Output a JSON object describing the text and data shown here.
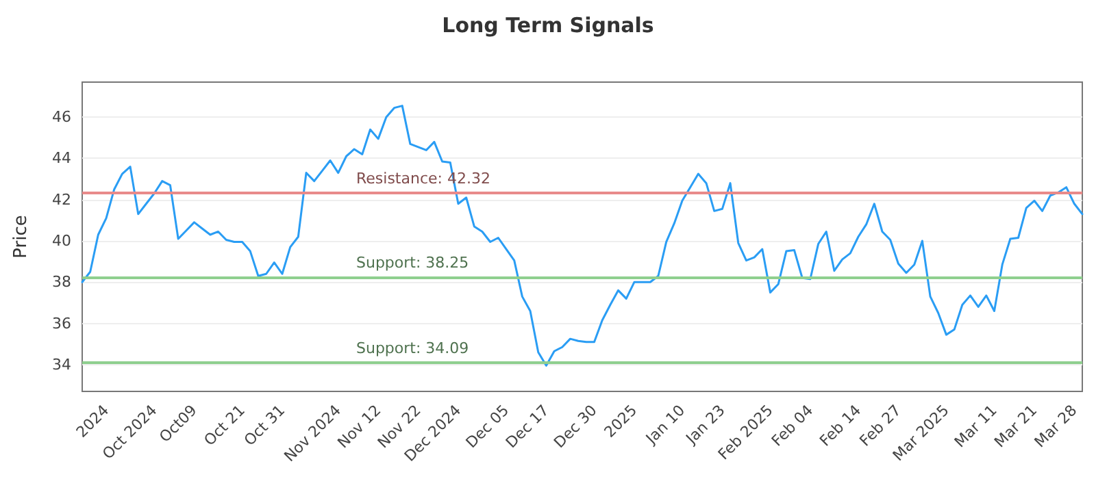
{
  "chart_data": {
    "type": "line",
    "title": "Long Term Signals",
    "ylabel": "Price",
    "categories": [
      null,
      null,
      null,
      "2024",
      null,
      null,
      null,
      null,
      null,
      "Oct 2024",
      null,
      null,
      null,
      null,
      "Oct09",
      null,
      null,
      null,
      null,
      null,
      "Oct 21",
      null,
      null,
      null,
      null,
      "Oct 31",
      null,
      null,
      null,
      null,
      null,
      null,
      "Nov 2024",
      null,
      null,
      null,
      null,
      "Nov 12",
      null,
      null,
      null,
      null,
      "Nov 22",
      null,
      null,
      null,
      null,
      "Dec 2024",
      null,
      null,
      null,
      null,
      null,
      "Dec 05",
      null,
      null,
      null,
      null,
      "Dec 17",
      null,
      null,
      null,
      null,
      null,
      "Dec 30",
      null,
      null,
      null,
      null,
      "2025",
      null,
      null,
      null,
      null,
      null,
      "Jan 10",
      null,
      null,
      null,
      null,
      "Jan 23",
      null,
      null,
      null,
      null,
      null,
      "Feb 2025",
      null,
      null,
      null,
      null,
      "Feb 04",
      null,
      null,
      null,
      null,
      null,
      "Feb 14",
      null,
      null,
      null,
      null,
      "Feb 27",
      null,
      null,
      null,
      null,
      null,
      "Mar 2025",
      null,
      null,
      null,
      null,
      null,
      "Mar 11",
      null,
      null,
      null,
      null,
      "Mar 21",
      null,
      null,
      null,
      null,
      "Mar 28",
      null
    ],
    "series": [
      {
        "color": "#2a9df4",
        "values": [
          38.0,
          38.5,
          40.3,
          41.1,
          42.5,
          43.25,
          43.6,
          41.3,
          41.8,
          42.3,
          42.9,
          42.7,
          40.1,
          40.5,
          40.9,
          40.6,
          40.3,
          40.45,
          40.05,
          39.95,
          39.95,
          39.5,
          38.3,
          38.4,
          38.95,
          38.4,
          39.7,
          40.2,
          43.3,
          42.9,
          43.4,
          43.9,
          43.3,
          44.1,
          44.45,
          44.2,
          45.4,
          44.95,
          46.0,
          46.45,
          46.55,
          44.7,
          44.55,
          44.4,
          44.8,
          43.85,
          43.8,
          41.8,
          42.1,
          40.7,
          40.45,
          39.95,
          40.15,
          39.6,
          39.05,
          37.3,
          36.6,
          34.6,
          33.95,
          34.65,
          34.85,
          35.25,
          35.15,
          35.1,
          35.1,
          36.15,
          36.9,
          37.6,
          37.2,
          38.0,
          38.0,
          38.0,
          38.3,
          39.95,
          40.85,
          41.95,
          42.6,
          43.25,
          42.8,
          41.45,
          41.55,
          42.8,
          39.9,
          39.05,
          39.2,
          39.6,
          37.5,
          37.9,
          39.5,
          39.55,
          38.2,
          38.15,
          39.85,
          40.45,
          38.55,
          39.1,
          39.4,
          40.2,
          40.8,
          41.8,
          40.45,
          40.05,
          38.9,
          38.45,
          38.85,
          40.0,
          37.3,
          36.5,
          35.45,
          35.7,
          36.9,
          37.35,
          36.8,
          37.35,
          36.6,
          38.85,
          40.1,
          40.15,
          41.6,
          41.95,
          41.45,
          42.2,
          42.35,
          42.6,
          41.8,
          41.3
        ]
      }
    ],
    "ylim": [
      32.7,
      47.7
    ],
    "yticks": [
      34,
      36,
      38,
      40,
      42,
      44,
      46
    ],
    "grid": "y",
    "marker": "none",
    "ref_lines": [
      {
        "axis": "y",
        "value": 42.32,
        "label": "Resistance: 42.32",
        "color": "#e88a8a"
      },
      {
        "axis": "y",
        "value": 38.25,
        "label": "Support: 38.25",
        "color": "#8fcf8f"
      },
      {
        "axis": "y",
        "value": 34.09,
        "label": "Support: 34.09",
        "color": "#8fcf8f"
      }
    ]
  }
}
